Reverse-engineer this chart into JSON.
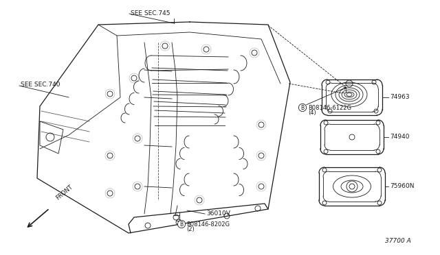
{
  "bg_color": "#ffffff",
  "line_color": "#1a1a1a",
  "figsize": [
    6.4,
    3.72
  ],
  "dpi": 100,
  "labels": {
    "sec745": "SEE SEC.745",
    "sec740": "SEE SEC.740",
    "bolt1_label": "B08146-6122G",
    "bolt1_qty": "(4)",
    "bolt2_label": "B08146-8202G",
    "bolt2_qty": "(2)",
    "part36010": "36010V",
    "part74963": "74963",
    "part74940": "74940",
    "part75960": "75960N",
    "diagram_num": "37700 A",
    "front": "FRONT"
  }
}
